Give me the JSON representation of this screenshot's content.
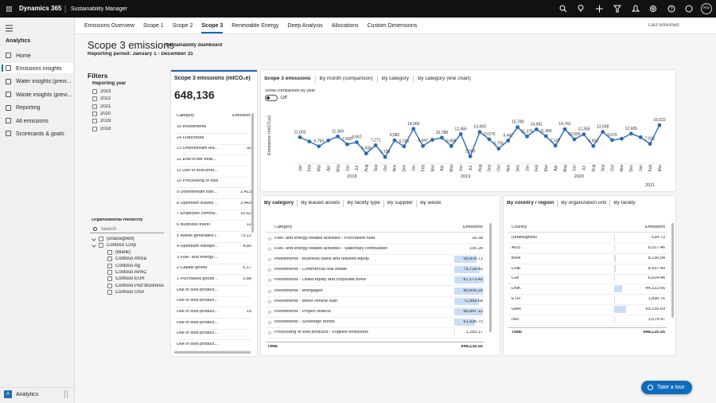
{
  "top_bar": {
    "product": "Dynamics 365",
    "app": "Sustainability Manager",
    "avatar": "RS"
  },
  "nav": {
    "section": "Analytics",
    "items": [
      "Home",
      "Emissions insights",
      "Water insights (previ...",
      "Waste insights (previ...",
      "Reporting",
      "All emissions",
      "Scorecards & goals"
    ],
    "area_badge": "A",
    "area": "Analytics"
  },
  "tabs": {
    "items": [
      "Emissions Overview",
      "Scope 1",
      "Scope 2",
      "Scope 3",
      "Renewable Energy",
      "Deep Analysis",
      "Allocations",
      "Custom Dimensions"
    ],
    "last_refreshed": "Last refreshed"
  },
  "header": {
    "title": "Scope 3 emissions",
    "badge": "Sustainability dashboard",
    "period": "Reporting period: January 1 - December 31"
  },
  "filters": {
    "title": "Filters",
    "year_label": "Reporting year",
    "years": [
      "2023",
      "2022",
      "2021",
      "2020",
      "2019",
      "2018"
    ],
    "org_label": "Organizational hierarchy",
    "search": "Search",
    "org_tree": [
      {
        "label": "(unassigned)"
      },
      {
        "label": "Contoso Corp",
        "children": [
          {
            "label": "(Blank)"
          },
          {
            "label": "Contoso Africa"
          },
          {
            "label": "Contoso Ag"
          },
          {
            "label": "Contoso APAC"
          },
          {
            "label": "Contoso EUR"
          },
          {
            "label": "Contoso Pod Business"
          },
          {
            "label": "Contoso USA"
          }
        ]
      }
    ]
  },
  "summary_card": {
    "title": "Scope 3 emissions (mtCO₂e)",
    "total": "648,136",
    "columns": [
      "Category",
      "Emissions"
    ],
    "rows": [
      {
        "category": "15 Investments"
      },
      {
        "category": "14 Franchises"
      },
      {
        "category": "13 Downstream lea...",
        "emissions": "32"
      },
      {
        "category": "12 End-of-life treat..."
      },
      {
        "category": "11 Use of sold prod..."
      },
      {
        "category": "10 Processing of sold..."
      },
      {
        "category": "9 Downstream tran...",
        "emissions": "2,413"
      },
      {
        "category": "8 Upstream leased ...",
        "emissions": "2,443"
      },
      {
        "category": "7 Employee commu...",
        "emissions": "10,62"
      },
      {
        "category": "6 Business travel",
        "emissions": "12"
      },
      {
        "category": "5 Waste generated i...",
        "emissions": "73,12"
      },
      {
        "category": "4 Upstream transpo...",
        "emissions": "4,80"
      },
      {
        "category": "3 Fuel- and energy-..."
      },
      {
        "category": "2 Capital goods",
        "emissions": "5,17"
      },
      {
        "category": "1 Purchased goods ...",
        "emissions": "3,88"
      },
      {
        "category": "Use of sold product..."
      },
      {
        "category": "Use of sold product..."
      },
      {
        "category": "Use of sold product...",
        "emissions": "19"
      },
      {
        "category": "Use of sold product..."
      },
      {
        "category": "Use of sold product..."
      },
      {
        "category": "Use of sold product..."
      }
    ]
  },
  "chart_card": {
    "tabs": [
      "Scope 3 emissions",
      "By month (comparison)",
      "By category",
      "By category (line chart)"
    ],
    "toggle_label": "Show comparison by year",
    "toggle_state": "Off"
  },
  "chart_data": {
    "type": "line",
    "y_label": "Emissions (mtCO₂e)",
    "color": "#2a6cb5",
    "categories": [
      "Jan",
      "Feb",
      "Mar",
      "Apr",
      "May",
      "Jun",
      "Jul",
      "Aug",
      "Sep",
      "Oct",
      "Nov",
      "Dec",
      "Jan",
      "Feb",
      "Mar",
      "Apr",
      "May",
      "Jun",
      "Jul",
      "Aug",
      "Sep",
      "Oct",
      "Nov",
      "Dec",
      "Jan",
      "Feb",
      "Mar",
      "Apr",
      "May",
      "Jun",
      "Jul",
      "Aug",
      "Sep",
      "Oct",
      "Nov",
      "Dec",
      "Jan",
      "Feb",
      "Mar"
    ],
    "x_groups": [
      "2018",
      "2019",
      "2020",
      "2021"
    ],
    "values": [
      11003,
      9000,
      6764,
      9500,
      11369,
      7690,
      8662,
      3430,
      7271,
      1799,
      9582,
      6729,
      14906,
      6947,
      9800,
      10788,
      6890,
      12465,
      2090,
      13459,
      10076,
      5705,
      9442,
      15708,
      11375,
      14681,
      11486,
      7107,
      14762,
      10009,
      12358,
      6903,
      13508,
      9676,
      10300,
      12665,
      11000,
      7912,
      16622
    ],
    "value_labels": [
      "11,003",
      null,
      "6,764",
      null,
      "11,369",
      "7,690",
      "8,662",
      "3,430",
      "7,271",
      "1,799",
      "9,582",
      "6,729",
      "14,906",
      "6,947",
      null,
      "10,788",
      "6,890",
      "12,465",
      "2,090",
      "13,459",
      "10,076",
      "5,705",
      "9,442",
      "15,708",
      "11,375",
      "14,681",
      "11,486",
      "7,107",
      "14,762",
      "10,009",
      "12,358",
      "6,903",
      "13,508",
      "9,676",
      null,
      "12,665",
      null,
      "7,912",
      "16,622"
    ],
    "ylim": [
      0,
      20000
    ]
  },
  "category_table": {
    "tabs": [
      "By category",
      "By leased assets",
      "By facility type",
      "By supplier",
      "By waste"
    ],
    "columns": [
      "Category",
      "Emissions"
    ],
    "categories": [
      "Fuel- and energy-related activities - Purchased heat",
      "Fuel- and energy-related activities - Stationary combustion",
      "Investments - Business loans and unlisted equity",
      "Investments - Commercial real estate",
      "Investments - Listed equity and corporate bond",
      "Investments - Mortgages",
      "Investments - Motor vehicle loan",
      "Investments - Project finance",
      "Investments - Sovereign bonds",
      "Processing of sold products - Fugitive emissions"
    ],
    "values": [
      16.38,
      100.28,
      65978.71,
      75718.42,
      87173.42,
      85505.25,
      72959.68,
      86847.12,
      61935.75,
      1283.17
    ],
    "value_labels": [
      "16.38",
      "100.28",
      "65,978.71",
      "75,718.42",
      "87,173.42",
      "85,505.25",
      "72,959.68",
      "86,847.12",
      "61,935.75",
      "1,283.17"
    ],
    "total_label": "Total",
    "total": "648,135.55"
  },
  "country_table": {
    "tabs": [
      "By country / region",
      "By organization unit",
      "By facility"
    ],
    "columns": [
      "Country",
      "Emissions"
    ],
    "categories": [
      "(unassigned)",
      "AUS",
      "BRA",
      "CHE",
      "CRI",
      "DNK",
      "ETH",
      "GBR",
      "IND"
    ],
    "values": [
      634.73,
      6517.46,
      8230.54,
      8937.49,
      6624.44,
      44222.66,
      1896.76,
      69155.69,
      3074.97
    ],
    "value_labels": [
      "634.73",
      "6,517.46",
      "8,230.54",
      "8,937.49",
      "6,624.44",
      "44,222.66",
      "1,896.76",
      "69,155.69",
      "3,074.97"
    ],
    "total_label": "Total",
    "total": "648,135.55"
  },
  "tour_button": "Take a tour"
}
